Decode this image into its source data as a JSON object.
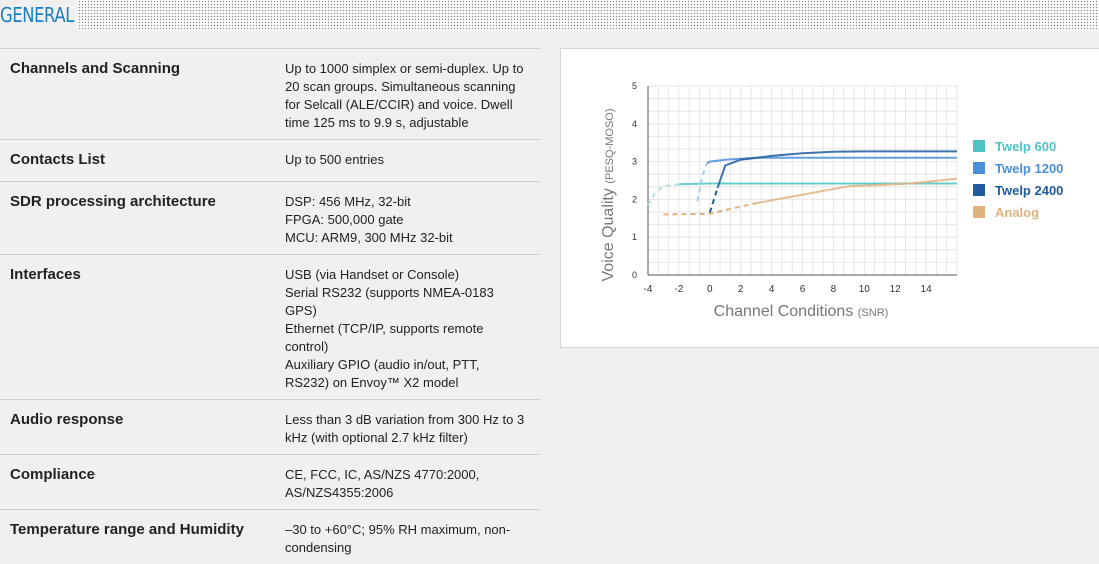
{
  "section": {
    "title": "GENERAL"
  },
  "specs": [
    {
      "key": "Channels and Scanning",
      "lines": [
        "Up to 1000 simplex or semi-duplex. Up to",
        "20 scan groups. Simultaneous scanning",
        "for Selcall (ALE/CCIR) and voice. Dwell",
        "time 125 ms to 9.9 s, adjustable"
      ]
    },
    {
      "key": "Contacts List",
      "lines": [
        "Up to 500 entries"
      ]
    },
    {
      "key": "SDR processing architecture",
      "lines": [
        "DSP: 456 MHz, 32-bit",
        "FPGA: 500,000 gate",
        "MCU: ARM9, 300 MHz 32-bit"
      ]
    },
    {
      "key": "Interfaces",
      "lines": [
        "USB (via Handset or Console)",
        "Serial RS232 (supports NMEA-0183",
        "GPS)",
        "Ethernet (TCP/IP, supports remote",
        "control)",
        "Auxiliary GPIO (audio in/out, PTT,",
        "RS232) on Envoy™ X2 model"
      ]
    },
    {
      "key": "Audio response",
      "lines": [
        "Less than 3 dB variation from 300 Hz to 3",
        "kHz (with optional 2.7 kHz filter)"
      ]
    },
    {
      "key": "Compliance",
      "lines": [
        "CE, FCC, IC, AS/NZS 4770:2000,",
        "AS/NZS4355:2006"
      ]
    },
    {
      "key": "Temperature range and Humidity",
      "lines": [
        "–30 to +60°C; 95% RH maximum, non-",
        "condensing"
      ]
    }
  ],
  "chart_data": {
    "type": "line",
    "title": "",
    "xlabel": "Channel Conditions",
    "xlabel_unit": "(SNR)",
    "ylabel": "Voice Quality",
    "ylabel_unit": "(PESQ-MOSO)",
    "xlim": [
      -4,
      16
    ],
    "ylim": [
      0,
      5
    ],
    "xticks": [
      -4,
      -2,
      0,
      2,
      4,
      6,
      8,
      10,
      12,
      14
    ],
    "yticks": [
      0,
      1,
      2,
      3,
      4,
      5
    ],
    "grid": true,
    "legend_position": "right",
    "series": [
      {
        "name": "Twelp 600",
        "color": "#4dc3c5",
        "faint_color": "#b4e3e4",
        "points": [
          [
            -4,
            1.85
          ],
          [
            -3.5,
            2.2
          ],
          [
            -3,
            2.35
          ],
          [
            -2,
            2.4
          ],
          [
            0,
            2.42
          ],
          [
            2,
            2.42
          ],
          [
            16,
            2.42
          ]
        ],
        "dashed_until": -2
      },
      {
        "name": "Twelp 1200",
        "color": "#4a90d9",
        "faint_color": "#a9cdf0",
        "points": [
          [
            -0.8,
            1.95
          ],
          [
            -0.5,
            2.6
          ],
          [
            -0.2,
            2.95
          ],
          [
            0,
            3.0
          ],
          [
            1,
            3.05
          ],
          [
            3,
            3.1
          ],
          [
            16,
            3.1
          ]
        ],
        "dashed_until": -0.1
      },
      {
        "name": "Twelp 2400",
        "color": "#1f5b9e",
        "faint_color": "#1f5b9e",
        "points": [
          [
            0,
            1.65
          ],
          [
            0.5,
            2.3
          ],
          [
            1,
            2.9
          ],
          [
            2,
            3.05
          ],
          [
            4,
            3.15
          ],
          [
            6,
            3.22
          ],
          [
            8,
            3.26
          ],
          [
            10,
            3.27
          ],
          [
            16,
            3.27
          ]
        ],
        "dashed_until": 0.9
      },
      {
        "name": "Analog",
        "color": "#e0b27e",
        "faint_color": "#e0b27e",
        "points": [
          [
            -3,
            1.6
          ],
          [
            0,
            1.62
          ],
          [
            1,
            1.72
          ],
          [
            3,
            1.9
          ],
          [
            5,
            2.05
          ],
          [
            7,
            2.2
          ],
          [
            9,
            2.35
          ],
          [
            11,
            2.38
          ],
          [
            13,
            2.42
          ],
          [
            16,
            2.55
          ]
        ],
        "dashed_until": 3.2
      }
    ]
  }
}
